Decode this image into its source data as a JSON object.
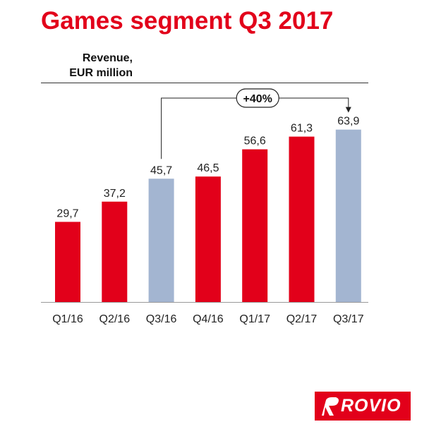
{
  "chart_data": {
    "type": "bar",
    "title": "Games segment Q3 2017",
    "ylabel_lines": [
      "Revenue,",
      "EUR million"
    ],
    "categories": [
      "Q1/16",
      "Q2/16",
      "Q3/16",
      "Q4/16",
      "Q1/17",
      "Q2/17",
      "Q3/17"
    ],
    "values": [
      29.7,
      37.2,
      45.7,
      46.5,
      56.6,
      61.3,
      63.9
    ],
    "value_labels": [
      "29,7",
      "37,2",
      "45,7",
      "46,5",
      "56,6",
      "61,3",
      "63,9"
    ],
    "highlighted": [
      false,
      false,
      true,
      false,
      false,
      false,
      true
    ],
    "ylim": [
      0,
      68
    ],
    "annotation": {
      "label": "+40%",
      "from_category": "Q3/16",
      "to_category": "Q3/17"
    },
    "colors": {
      "primary": "#e2001a",
      "highlight": "#a3b5d1",
      "axis": "#999999",
      "text": "#222222"
    }
  },
  "brand": {
    "logo_text": "ROVIO"
  }
}
